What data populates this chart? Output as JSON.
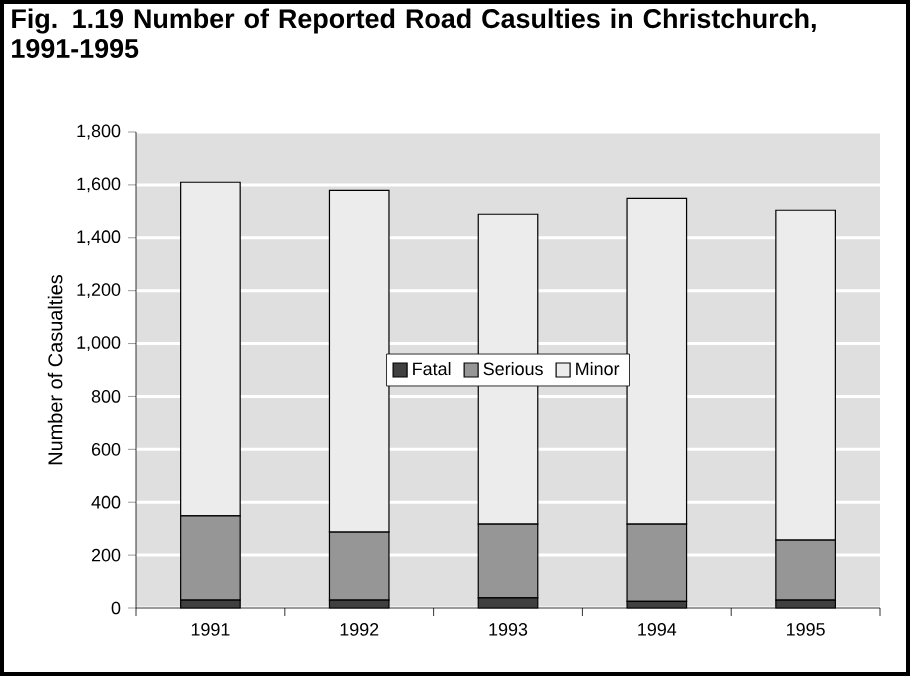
{
  "chart_data": {
    "type": "bar",
    "title": "Fig. 1.19 Number of Reported Road Casulties in Christchurch, 1991-1995",
    "ylabel": "Number of Casualties",
    "categories": [
      "1991",
      "1992",
      "1993",
      "1994",
      "1995"
    ],
    "stacked": true,
    "series": [
      {
        "name": "Fatal",
        "color": "#404040",
        "values": [
          30,
          30,
          38,
          25,
          30
        ]
      },
      {
        "name": "Serious",
        "color": "#969696",
        "values": [
          318,
          257,
          279,
          292,
          227
        ]
      },
      {
        "name": "Minor",
        "color": "#ececec",
        "values": [
          1262,
          1292,
          1172,
          1232,
          1247
        ]
      }
    ],
    "ylim": [
      0,
      1800
    ],
    "yticks": [
      {
        "value": 0,
        "label": "0"
      },
      {
        "value": 200,
        "label": "200"
      },
      {
        "value": 400,
        "label": "400"
      },
      {
        "value": 600,
        "label": "600"
      },
      {
        "value": 800,
        "label": "800"
      },
      {
        "value": 1000,
        "label": "1,000"
      },
      {
        "value": 1200,
        "label": "1,200"
      },
      {
        "value": 1400,
        "label": "1,400"
      },
      {
        "value": 1600,
        "label": "1,600"
      },
      {
        "value": 1800,
        "label": "1,800"
      }
    ],
    "grid": "y",
    "legend": "center"
  }
}
